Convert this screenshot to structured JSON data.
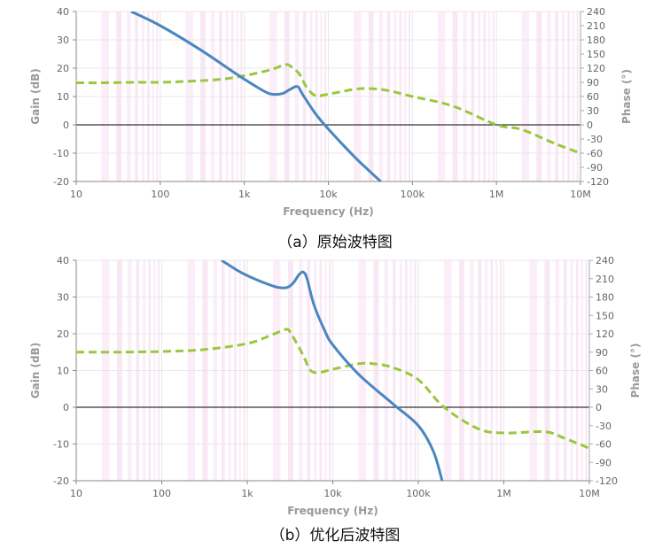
{
  "chart_data": [
    {
      "type": "line",
      "caption": "（a）原始波特图",
      "xlabel": "Frequency (Hz)",
      "ylabel": "Gain (dB)",
      "y2label": "Phase (°)",
      "xscale": "log",
      "xlim": [
        10,
        10000000
      ],
      "ylim": [
        -20,
        40
      ],
      "y2lim": [
        -120,
        240
      ],
      "xticks": [
        "10",
        "100",
        "1k",
        "10k",
        "100k",
        "1M",
        "10M"
      ],
      "yticks": [
        "40",
        "30",
        "20",
        "10",
        "0",
        "-10",
        "-20"
      ],
      "y2ticks": [
        "240",
        "210",
        "180",
        "150",
        "120",
        "90",
        "60",
        "30",
        "0",
        "-30",
        "-60",
        "-90",
        "-120"
      ],
      "series": [
        {
          "name": "Gain",
          "axis": "left",
          "color": "#4a86c0",
          "style": "solid",
          "points": [
            [
              45,
              40
            ],
            [
              100,
              35
            ],
            [
              300,
              26.5
            ],
            [
              800,
              18
            ],
            [
              1300,
              14
            ],
            [
              2000,
              11
            ],
            [
              2800,
              11
            ],
            [
              3500,
              12.5
            ],
            [
              4300,
              13.5
            ],
            [
              5000,
              10.5
            ],
            [
              7000,
              4
            ],
            [
              10000,
              -1.5
            ],
            [
              20000,
              -11
            ],
            [
              30000,
              -16
            ],
            [
              42000,
              -20
            ]
          ]
        },
        {
          "name": "Phase",
          "axis": "right",
          "color": "#99c83c",
          "style": "dashed",
          "points": [
            [
              10,
              89
            ],
            [
              20,
              89
            ],
            [
              50,
              90
            ],
            [
              100,
              90
            ],
            [
              200,
              92
            ],
            [
              500,
              96
            ],
            [
              1000,
              104
            ],
            [
              2000,
              116
            ],
            [
              3000,
              127
            ],
            [
              3500,
              125
            ],
            [
              4500,
              108
            ],
            [
              5500,
              80
            ],
            [
              7000,
              62
            ],
            [
              10000,
              65
            ],
            [
              20000,
              75
            ],
            [
              30000,
              77
            ],
            [
              50000,
              73
            ],
            [
              100000,
              60
            ],
            [
              300000,
              40
            ],
            [
              1000000,
              0
            ],
            [
              2000000,
              -10
            ],
            [
              5000000,
              -40
            ],
            [
              10000000,
              -60
            ]
          ]
        }
      ]
    },
    {
      "type": "line",
      "caption": "（b）优化后波特图",
      "xlabel": "Frequency (Hz)",
      "ylabel": "Gain (dB)",
      "y2label": "Phase (°)",
      "xscale": "log",
      "xlim": [
        10,
        10000000
      ],
      "ylim": [
        -20,
        40
      ],
      "y2lim": [
        -120,
        240
      ],
      "xticks": [
        "10",
        "100",
        "1k",
        "10k",
        "100k",
        "1M",
        "10M"
      ],
      "yticks": [
        "40",
        "30",
        "20",
        "10",
        "0",
        "-10",
        "-20"
      ],
      "y2ticks": [
        "240",
        "210",
        "180",
        "150",
        "120",
        "90",
        "60",
        "30",
        "0",
        "-30",
        "-60",
        "-90",
        "-120"
      ],
      "series": [
        {
          "name": "Gain",
          "axis": "left",
          "color": "#4a86c0",
          "style": "solid",
          "points": [
            [
              500,
              40
            ],
            [
              800,
              37
            ],
            [
              1200,
              35
            ],
            [
              2000,
              33
            ],
            [
              2500,
              32.5
            ],
            [
              3000,
              32.7
            ],
            [
              3500,
              34
            ],
            [
              4000,
              36
            ],
            [
              4500,
              36.8
            ],
            [
              5000,
              35
            ],
            [
              6000,
              28
            ],
            [
              8000,
              21
            ],
            [
              10000,
              17
            ],
            [
              20000,
              9
            ],
            [
              50000,
              1
            ],
            [
              100000,
              -5
            ],
            [
              150000,
              -12
            ],
            [
              190000,
              -20
            ]
          ]
        },
        {
          "name": "Phase",
          "axis": "right",
          "color": "#99c83c",
          "style": "dashed",
          "points": [
            [
              10,
              90
            ],
            [
              30,
              90
            ],
            [
              100,
              91
            ],
            [
              300,
              94
            ],
            [
              1000,
              104
            ],
            [
              2000,
              119
            ],
            [
              2800,
              127
            ],
            [
              3200,
              122
            ],
            [
              4500,
              85
            ],
            [
              5500,
              60
            ],
            [
              7000,
              57
            ],
            [
              10000,
              62
            ],
            [
              20000,
              71
            ],
            [
              30000,
              71
            ],
            [
              50000,
              65
            ],
            [
              100000,
              45
            ],
            [
              200000,
              0
            ],
            [
              500000,
              -35
            ],
            [
              1000000,
              -42
            ],
            [
              3000000,
              -40
            ],
            [
              5000000,
              -50
            ],
            [
              10000000,
              -67
            ]
          ]
        }
      ]
    }
  ]
}
